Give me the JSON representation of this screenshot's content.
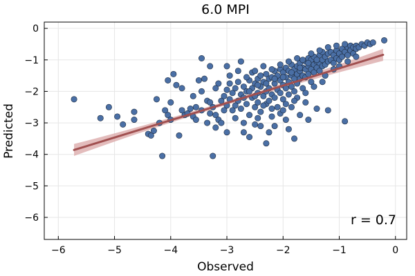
{
  "chart_data": {
    "type": "scatter",
    "title": "6.0 MPI",
    "xlabel": "Observed",
    "ylabel": "Predicted",
    "xlim": [
      -6.25,
      0.2
    ],
    "ylim": [
      -6.7,
      0.2
    ],
    "xticks": [
      -6,
      -5,
      -4,
      -3,
      -2,
      -1,
      0
    ],
    "yticks": [
      0,
      -1,
      -2,
      -3,
      -4,
      -5,
      -6
    ],
    "xtick_labels": [
      "−6",
      "−5",
      "−4",
      "−3",
      "−2",
      "−1",
      "0"
    ],
    "ytick_labels": [
      "0",
      "−1",
      "−2",
      "−3",
      "−4",
      "−5",
      "−6"
    ],
    "grid": true,
    "legend": "none",
    "annotation": "r = 0.7",
    "colors": {
      "points": "#4a6fa5",
      "point_edge": "#1d2a3d",
      "fit_line": "#a15050",
      "band": "#d9a6a6"
    },
    "fit": {
      "x": [
        -5.72,
        -0.22
      ],
      "y": [
        -3.86,
        -0.84
      ],
      "band_halfwidth_ends": 0.19,
      "band_halfwidth_mid": 0.06
    },
    "points": [
      [
        -5.72,
        -2.25
      ],
      [
        -5.25,
        -2.85
      ],
      [
        -5.1,
        -2.5
      ],
      [
        -4.95,
        -2.8
      ],
      [
        -4.85,
        -3.05
      ],
      [
        -4.65,
        -2.65
      ],
      [
        -4.65,
        -2.9
      ],
      [
        -4.4,
        -3.35
      ],
      [
        -4.35,
        -3.4
      ],
      [
        -4.3,
        -3.25
      ],
      [
        -4.25,
        -2.25
      ],
      [
        -4.2,
        -3.0
      ],
      [
        -4.15,
        -4.05
      ],
      [
        -4.1,
        -2.6
      ],
      [
        -4.05,
        -2.75
      ],
      [
        -4.0,
        -2.9
      ],
      [
        -4.05,
        -1.65
      ],
      [
        -3.95,
        -1.45
      ],
      [
        -3.9,
        -1.8
      ],
      [
        -3.85,
        -3.4
      ],
      [
        -3.8,
        -1.9
      ],
      [
        -3.75,
        -2.75
      ],
      [
        -3.7,
        -2.7
      ],
      [
        -3.65,
        -2.55
      ],
      [
        -3.6,
        -2.8
      ],
      [
        -3.55,
        -2.5
      ],
      [
        -3.55,
        -2.9
      ],
      [
        -3.5,
        -1.65
      ],
      [
        -3.45,
        -0.95
      ],
      [
        -3.45,
        -2.6
      ],
      [
        -3.4,
        -1.6
      ],
      [
        -3.35,
        -2.3
      ],
      [
        -3.35,
        -3.0
      ],
      [
        -3.3,
        -1.2
      ],
      [
        -3.3,
        -2.7
      ],
      [
        -3.25,
        -2.5
      ],
      [
        -3.25,
        -4.05
      ],
      [
        -3.2,
        -2.75
      ],
      [
        -3.2,
        -3.15
      ],
      [
        -3.15,
        -2.9
      ],
      [
        -3.1,
        -2.3
      ],
      [
        -3.1,
        -3.0
      ],
      [
        -3.05,
        -2.15
      ],
      [
        -3.0,
        -1.95
      ],
      [
        -3.0,
        -2.45
      ],
      [
        -3.0,
        -3.3
      ],
      [
        -2.95,
        -1.75
      ],
      [
        -2.95,
        -2.25
      ],
      [
        -2.9,
        -2.6
      ],
      [
        -2.9,
        -2.05
      ],
      [
        -2.85,
        -1.9
      ],
      [
        -2.85,
        -2.85
      ],
      [
        -2.8,
        -1.7
      ],
      [
        -2.8,
        -2.3
      ],
      [
        -2.75,
        -2.1
      ],
      [
        -2.75,
        -2.55
      ],
      [
        -2.7,
        -1.85
      ],
      [
        -2.7,
        -3.0
      ],
      [
        -2.7,
        -3.3
      ],
      [
        -2.65,
        -2.0
      ],
      [
        -2.65,
        -2.4
      ],
      [
        -2.6,
        -1.65
      ],
      [
        -2.6,
        -2.75
      ],
      [
        -2.6,
        -3.45
      ],
      [
        -2.55,
        -1.4
      ],
      [
        -2.55,
        -1.9
      ],
      [
        -2.55,
        -2.2
      ],
      [
        -2.5,
        -1.75
      ],
      [
        -2.5,
        -2.5
      ],
      [
        -2.5,
        -3.05
      ],
      [
        -2.45,
        -1.6
      ],
      [
        -2.45,
        -2.05
      ],
      [
        -2.45,
        -2.35
      ],
      [
        -2.4,
        -1.5
      ],
      [
        -2.4,
        -1.85
      ],
      [
        -2.4,
        -2.65
      ],
      [
        -2.4,
        -3.1
      ],
      [
        -2.35,
        -1.7
      ],
      [
        -2.35,
        -2.15
      ],
      [
        -2.3,
        -1.45
      ],
      [
        -2.3,
        -2.0
      ],
      [
        -2.3,
        -2.4
      ],
      [
        -2.3,
        -3.65
      ],
      [
        -2.25,
        -1.6
      ],
      [
        -2.25,
        -1.9
      ],
      [
        -2.25,
        -2.3
      ],
      [
        -2.2,
        -1.55
      ],
      [
        -2.2,
        -2.1
      ],
      [
        -2.2,
        -2.8
      ],
      [
        -2.15,
        -1.35
      ],
      [
        -2.15,
        -1.75
      ],
      [
        -2.15,
        -2.2
      ],
      [
        -2.15,
        -3.1
      ],
      [
        -2.1,
        -1.5
      ],
      [
        -2.1,
        -1.95
      ],
      [
        -2.1,
        -2.5
      ],
      [
        -2.05,
        -1.3
      ],
      [
        -2.05,
        -1.65
      ],
      [
        -2.05,
        -2.05
      ],
      [
        -2.05,
        -2.7
      ],
      [
        -2.0,
        -1.4
      ],
      [
        -2.0,
        -1.8
      ],
      [
        -2.0,
        -2.25
      ],
      [
        -1.95,
        -1.25
      ],
      [
        -1.95,
        -1.55
      ],
      [
        -1.95,
        -1.9
      ],
      [
        -1.95,
        -2.4
      ],
      [
        -1.95,
        -2.9
      ],
      [
        -1.9,
        -1.35
      ],
      [
        -1.9,
        -1.7
      ],
      [
        -1.9,
        -2.1
      ],
      [
        -1.85,
        -1.15
      ],
      [
        -1.85,
        -1.5
      ],
      [
        -1.85,
        -1.85
      ],
      [
        -1.85,
        -2.5
      ],
      [
        -1.8,
        -1.3
      ],
      [
        -1.8,
        -1.6
      ],
      [
        -1.8,
        -2.0
      ],
      [
        -1.8,
        -3.5
      ],
      [
        -1.75,
        -1.2
      ],
      [
        -1.75,
        -1.45
      ],
      [
        -1.75,
        -1.75
      ],
      [
        -1.75,
        -2.2
      ],
      [
        -1.7,
        -1.1
      ],
      [
        -1.7,
        -1.35
      ],
      [
        -1.7,
        -1.6
      ],
      [
        -1.7,
        -2.75
      ],
      [
        -1.65,
        -1.25
      ],
      [
        -1.65,
        -1.5
      ],
      [
        -1.65,
        -1.9
      ],
      [
        -1.6,
        -1.05
      ],
      [
        -1.6,
        -1.3
      ],
      [
        -1.6,
        -1.55
      ],
      [
        -1.6,
        -2.35
      ],
      [
        -1.55,
        -0.95
      ],
      [
        -1.55,
        -1.2
      ],
      [
        -1.55,
        -1.45
      ],
      [
        -1.5,
        -1.0
      ],
      [
        -1.5,
        -1.3
      ],
      [
        -1.5,
        -1.7
      ],
      [
        -1.45,
        -0.9
      ],
      [
        -1.45,
        -1.15
      ],
      [
        -1.45,
        -1.4
      ],
      [
        -1.4,
        -1.05
      ],
      [
        -1.4,
        -1.25
      ],
      [
        -1.4,
        -2.55
      ],
      [
        -1.35,
        -0.85
      ],
      [
        -1.35,
        -1.1
      ],
      [
        -1.35,
        -1.35
      ],
      [
        -1.3,
        -0.75
      ],
      [
        -1.3,
        -1.0
      ],
      [
        -1.3,
        -1.2
      ],
      [
        -1.25,
        -0.9
      ],
      [
        -1.25,
        -1.15
      ],
      [
        -1.25,
        -1.5
      ],
      [
        -1.2,
        -0.8
      ],
      [
        -1.2,
        -1.05
      ],
      [
        -1.2,
        -2.6
      ],
      [
        -1.15,
        -0.75
      ],
      [
        -1.15,
        -1.0
      ],
      [
        -1.1,
        -0.85
      ],
      [
        -1.1,
        -1.1
      ],
      [
        -1.05,
        -0.7
      ],
      [
        -1.05,
        -0.95
      ],
      [
        -1.0,
        -0.8
      ],
      [
        -1.0,
        -1.0
      ],
      [
        -0.95,
        -0.65
      ],
      [
        -0.95,
        -0.9
      ],
      [
        -0.9,
        -0.75
      ],
      [
        -0.9,
        -2.95
      ],
      [
        -0.85,
        -0.6
      ],
      [
        -0.85,
        -0.85
      ],
      [
        -0.8,
        -0.55
      ],
      [
        -0.8,
        -0.7
      ],
      [
        -0.75,
        -0.6
      ],
      [
        -0.75,
        -0.8
      ],
      [
        -0.7,
        -0.55
      ],
      [
        -0.7,
        -0.65
      ],
      [
        -0.65,
        -0.6
      ],
      [
        -0.6,
        -0.5
      ],
      [
        -0.55,
        -0.55
      ],
      [
        -0.5,
        -0.45
      ],
      [
        -0.45,
        -0.5
      ],
      [
        -0.4,
        -0.45
      ],
      [
        -0.2,
        -0.38
      ],
      [
        -3.15,
        -1.75
      ],
      [
        -2.95,
        -1.5
      ],
      [
        -2.8,
        -1.35
      ],
      [
        -2.65,
        -1.55
      ],
      [
        -2.5,
        -1.35
      ],
      [
        -2.35,
        -1.2
      ],
      [
        -2.2,
        -1.3
      ],
      [
        -2.05,
        -1.15
      ],
      [
        -1.9,
        -1.05
      ],
      [
        -1.75,
        -0.95
      ],
      [
        -1.65,
        -1.0
      ],
      [
        -1.5,
        -0.8
      ],
      [
        -1.35,
        -0.7
      ],
      [
        -1.2,
        -0.6
      ],
      [
        -1.05,
        -0.55
      ],
      [
        -0.9,
        -0.5
      ],
      [
        -2.6,
        -2.0
      ],
      [
        -2.45,
        -1.8
      ],
      [
        -2.3,
        -1.75
      ],
      [
        -2.15,
        -1.6
      ],
      [
        -2.0,
        -1.55
      ],
      [
        -1.85,
        -1.4
      ],
      [
        -1.7,
        -1.25
      ],
      [
        -1.55,
        -1.1
      ],
      [
        -1.4,
        -1.0
      ],
      [
        -3.3,
        -2.35
      ],
      [
        -3.05,
        -2.6
      ],
      [
        -2.85,
        -2.45
      ],
      [
        -2.7,
        -2.2
      ],
      [
        -2.5,
        -2.15
      ],
      [
        -2.35,
        -2.45
      ],
      [
        -2.2,
        -2.55
      ],
      [
        -2.0,
        -2.6
      ],
      [
        -1.8,
        -2.3
      ],
      [
        -1.6,
        -2.05
      ],
      [
        -1.45,
        -1.85
      ],
      [
        -1.3,
        -1.7
      ],
      [
        -3.6,
        -2.15
      ],
      [
        -3.8,
        -2.6
      ],
      [
        -4.0,
        -2.35
      ],
      [
        -3.0,
        -1.2
      ],
      [
        -2.75,
        -1.05
      ],
      [
        -2.45,
        -2.85
      ],
      [
        -2.25,
        -3.3
      ],
      [
        -1.9,
        -3.2
      ],
      [
        -1.55,
        -2.9
      ],
      [
        -3.45,
        -2.0
      ],
      [
        -3.2,
        -1.9
      ],
      [
        -1.1,
        -1.3
      ],
      [
        -1.0,
        -1.2
      ],
      [
        -0.85,
        -1.05
      ],
      [
        -0.7,
        -0.9
      ]
    ]
  }
}
